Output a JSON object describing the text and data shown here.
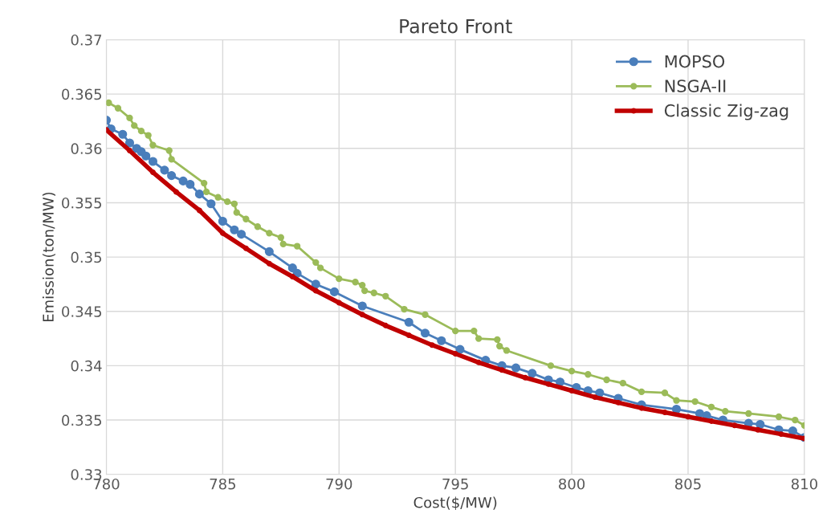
{
  "chart_data": {
    "type": "line",
    "title": "Pareto Front",
    "xlabel": "Cost($/MW)",
    "ylabel": "Emission(ton/MW)",
    "xlim": [
      780,
      810
    ],
    "xticks": [
      780,
      785,
      790,
      795,
      800,
      805,
      810
    ],
    "ylim": [
      0.33,
      0.37
    ],
    "yticks": [
      0.33,
      0.335,
      0.34,
      0.345,
      0.35,
      0.355,
      0.36,
      0.365,
      0.37
    ],
    "grid": true,
    "legend": "top right",
    "marker": "circle",
    "line_style": "solid",
    "series": [
      {
        "name": "MOPSO",
        "color": "#4a7ebb",
        "x": [
          780,
          780.2,
          780.7,
          781,
          781.3,
          781.5,
          781.7,
          782,
          782.5,
          782.8,
          783.3,
          783.6,
          784,
          784.5,
          785,
          785.5,
          785.8,
          787,
          788,
          788.2,
          789,
          789.8,
          791,
          793,
          793.7,
          794.4,
          795.2,
          796.3,
          797,
          797.6,
          798.3,
          799,
          799.5,
          800.2,
          800.7,
          801.2,
          802,
          803,
          804.5,
          805.5,
          805.8,
          806.5,
          807.6,
          808.1,
          808.9,
          809.5,
          810
        ],
        "values": [
          0.3626,
          0.3618,
          0.3613,
          0.3605,
          0.36,
          0.3597,
          0.3593,
          0.3588,
          0.358,
          0.3575,
          0.357,
          0.3567,
          0.3558,
          0.3549,
          0.3533,
          0.3525,
          0.3521,
          0.3505,
          0.349,
          0.3485,
          0.3475,
          0.3468,
          0.3455,
          0.344,
          0.343,
          0.3423,
          0.3415,
          0.3405,
          0.34,
          0.3398,
          0.3393,
          0.3387,
          0.3385,
          0.338,
          0.3377,
          0.3375,
          0.337,
          0.3364,
          0.336,
          0.3356,
          0.3354,
          0.335,
          0.3347,
          0.3346,
          0.3341,
          0.334,
          0.3334
        ]
      },
      {
        "name": "NSGA-II",
        "color": "#9bbb59",
        "x": [
          780.1,
          780.5,
          781,
          781.2,
          781.5,
          781.8,
          782,
          782.7,
          782.8,
          784.2,
          784.3,
          784.8,
          785.2,
          785.5,
          785.6,
          786,
          786.5,
          787,
          787.5,
          787.6,
          788.2,
          789,
          789.2,
          790,
          790.7,
          791,
          791.1,
          791.5,
          792,
          792.8,
          793.7,
          795,
          795.8,
          796,
          796.8,
          796.9,
          797.2,
          799.1,
          800,
          800.7,
          801.5,
          802.2,
          803,
          804,
          804.5,
          805.3,
          806,
          806.6,
          807.6,
          808.9,
          809.6,
          810
        ],
        "values": [
          0.3642,
          0.3637,
          0.3628,
          0.3621,
          0.3616,
          0.3612,
          0.3603,
          0.3598,
          0.359,
          0.3568,
          0.356,
          0.3555,
          0.3551,
          0.3549,
          0.3541,
          0.3535,
          0.3528,
          0.3522,
          0.3518,
          0.3512,
          0.351,
          0.3495,
          0.349,
          0.348,
          0.3477,
          0.3474,
          0.3469,
          0.3467,
          0.3464,
          0.3452,
          0.3447,
          0.3432,
          0.3432,
          0.3425,
          0.3424,
          0.3418,
          0.3414,
          0.34,
          0.3395,
          0.3392,
          0.3387,
          0.3384,
          0.3376,
          0.3375,
          0.3368,
          0.3367,
          0.3362,
          0.3358,
          0.3356,
          0.3353,
          0.335,
          0.3345
        ]
      },
      {
        "name": "Classic Zig-zag",
        "color": "#c00000",
        "x": [
          780,
          781,
          782,
          783,
          784,
          785,
          786,
          787,
          788,
          789,
          790,
          791,
          792,
          793,
          794,
          795,
          796,
          797,
          798,
          799,
          800,
          801,
          802,
          803,
          804,
          805,
          806,
          807,
          808,
          809,
          810
        ],
        "values": [
          0.3617,
          0.3598,
          0.3578,
          0.356,
          0.3543,
          0.3522,
          0.3508,
          0.3494,
          0.3482,
          0.3469,
          0.3458,
          0.3447,
          0.3437,
          0.3428,
          0.3419,
          0.3411,
          0.3403,
          0.3396,
          0.3389,
          0.3383,
          0.3377,
          0.3371,
          0.3366,
          0.3361,
          0.3357,
          0.3353,
          0.3349,
          0.3345,
          0.3341,
          0.3337,
          0.3333
        ]
      }
    ]
  }
}
